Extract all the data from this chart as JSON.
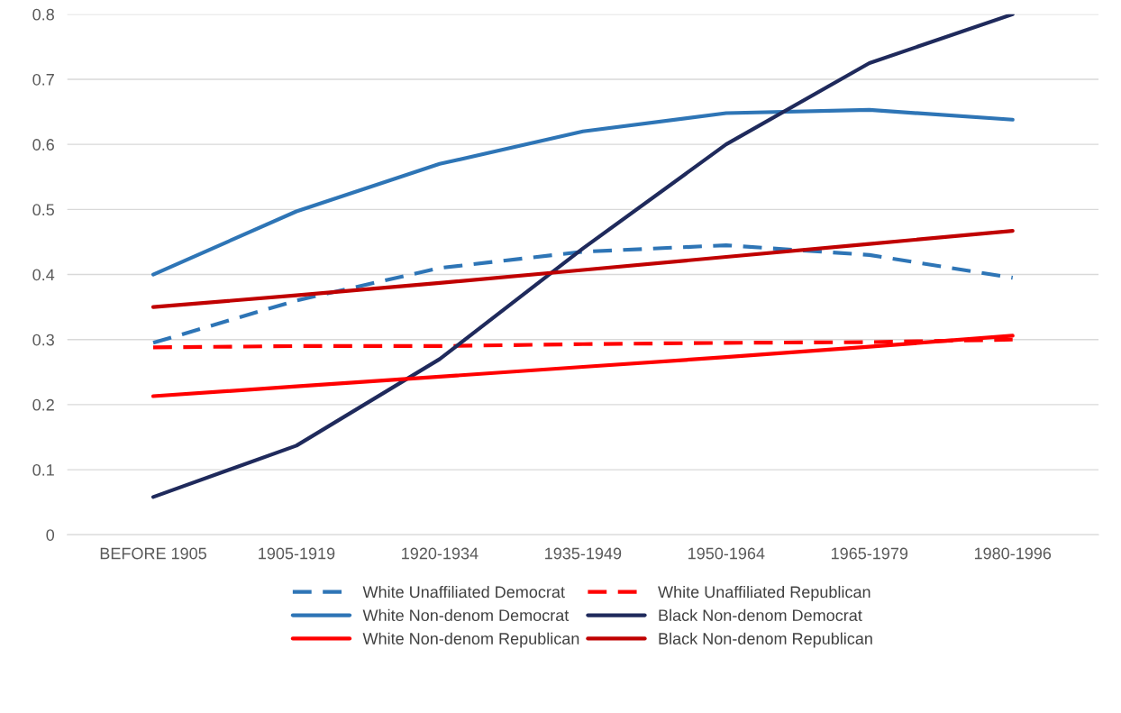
{
  "chart_data": {
    "type": "line",
    "categories": [
      "BEFORE 1905",
      "1905-1919",
      "1920-1934",
      "1935-1949",
      "1950-1964",
      "1965-1979",
      "1980-1996"
    ],
    "series": [
      {
        "name": "White Unaffiliated Democrat",
        "color": "#2e75b6",
        "line_style": "dashed",
        "values": [
          0.295,
          0.36,
          0.41,
          0.435,
          0.445,
          0.43,
          0.395
        ]
      },
      {
        "name": "White Unaffiliated Republican",
        "color": "#ff0000",
        "line_style": "dashed",
        "values": [
          0.288,
          0.29,
          0.29,
          0.293,
          0.295,
          0.296,
          0.3
        ]
      },
      {
        "name": "White Non-denom Democrat",
        "color": "#2e75b6",
        "line_style": "solid",
        "values": [
          0.4,
          0.497,
          0.57,
          0.62,
          0.648,
          0.653,
          0.638
        ]
      },
      {
        "name": "Black Non-denom Democrat",
        "color": "#1f2a5c",
        "line_style": "solid",
        "values": [
          0.058,
          0.137,
          0.27,
          0.44,
          0.6,
          0.725,
          0.8
        ]
      },
      {
        "name": "White Non-denom Republican",
        "color": "#ff0000",
        "line_style": "solid",
        "values": [
          0.213,
          0.228,
          0.243,
          0.258,
          0.273,
          0.289,
          0.306
        ]
      },
      {
        "name": "Black Non-denom Republican",
        "color": "#c00000",
        "line_style": "solid",
        "values": [
          0.35,
          0.368,
          0.387,
          0.407,
          0.427,
          0.447,
          0.467
        ]
      }
    ],
    "ylim": [
      0,
      0.8
    ],
    "yticks": [
      0,
      0.1,
      0.2,
      0.3,
      0.4,
      0.5,
      0.6,
      0.7,
      0.8
    ],
    "grid": "y",
    "legend": "bottom",
    "marker": "none"
  }
}
